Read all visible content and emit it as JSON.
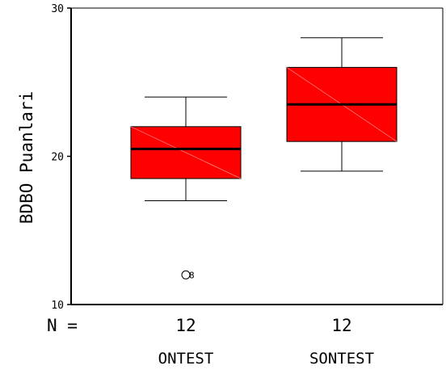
{
  "chart_data": {
    "type": "boxplot",
    "title": "",
    "xlabel": "",
    "ylabel": "BDBO Puanlari",
    "ylim": [
      10,
      30
    ],
    "yticks": [
      10,
      20,
      30
    ],
    "n_label": "N =",
    "grid": false,
    "legend": "none",
    "box_color": "#ff0000",
    "categories": [
      "ONTEST",
      "SONTEST"
    ],
    "series": [
      {
        "category": "ONTEST",
        "n": "12",
        "min": 17,
        "q1": 18.5,
        "median": 20.5,
        "q3": 22,
        "max": 24,
        "outliers": [
          {
            "value": 12,
            "label": "8"
          }
        ]
      },
      {
        "category": "SONTEST",
        "n": "12",
        "min": 19,
        "q1": 21,
        "median": 23.5,
        "q3": 26,
        "max": 28,
        "outliers": []
      }
    ]
  }
}
